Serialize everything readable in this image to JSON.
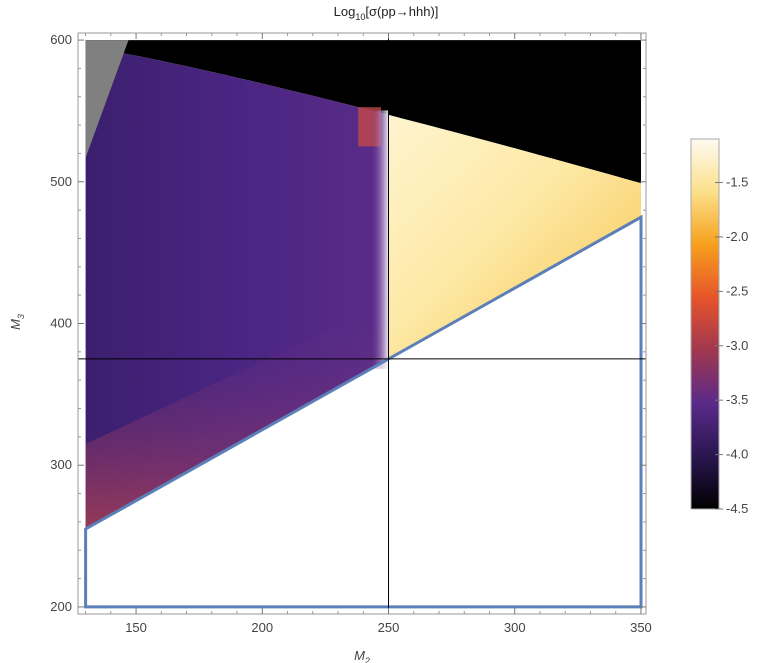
{
  "chart_data": {
    "type": "heatmap",
    "title_main": "Log",
    "title_sub": "10",
    "title_rest": "[σ(pp→hhh)]",
    "xlabel_main": "M",
    "xlabel_sub": "2",
    "ylabel_main": "M",
    "ylabel_sub": "3",
    "xlim": [
      127,
      352
    ],
    "ylim": [
      195,
      605
    ],
    "xticks": [
      150,
      200,
      250,
      300,
      350
    ],
    "yticks": [
      200,
      300,
      400,
      500,
      600
    ],
    "colorbar": {
      "range": [
        -4.5,
        -1.1
      ],
      "ticks": [
        "-1.5",
        "-2.0",
        "-2.5",
        "-3.0",
        "-3.5",
        "-4.0",
        "-4.5"
      ],
      "tick_values": [
        -1.5,
        -2.0,
        -2.5,
        -3.0,
        -3.5,
        -4.0,
        -4.5
      ],
      "colors": [
        "#000000",
        "#2a1650",
        "#5a2a8a",
        "#a1374f",
        "#e6542a",
        "#f7a01c",
        "#fbe08a",
        "#fffaf2"
      ]
    },
    "reference_lines": {
      "vertical_x": 250,
      "horizontal_y": 375
    },
    "boundary_outline": [
      [
        130,
        255
      ],
      [
        350,
        475
      ],
      [
        350,
        200
      ],
      [
        130,
        200
      ]
    ],
    "regions": [
      {
        "name": "excluded-top",
        "color": "#000000"
      },
      {
        "name": "excluded-corner",
        "color": "#808080"
      },
      {
        "name": "low-mass-purple",
        "value_range": [
          -4.1,
          -3.4
        ]
      },
      {
        "name": "high-mass-yellow",
        "value_range": [
          -1.9,
          -1.2
        ]
      }
    ]
  }
}
